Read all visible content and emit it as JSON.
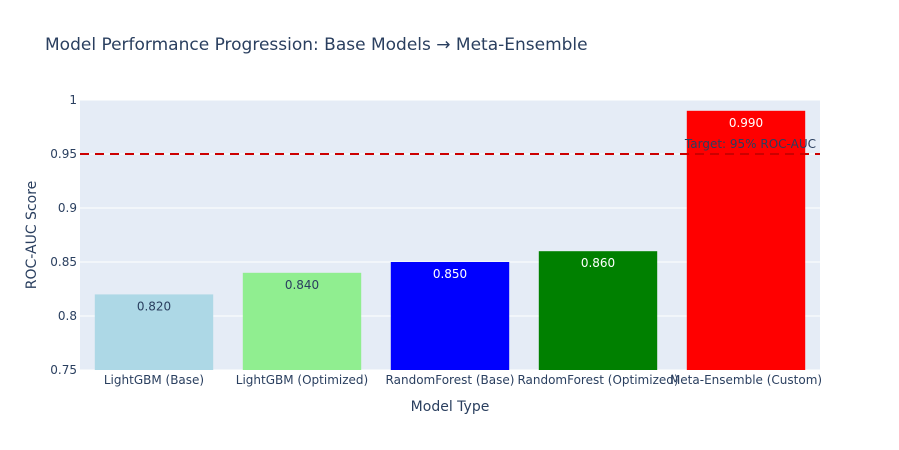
{
  "chart_data": {
    "type": "bar",
    "title": "Model Performance Progression: Base Models → Meta-Ensemble",
    "xlabel": "Model Type",
    "ylabel": "ROC-AUC Score",
    "ylim": [
      0.75,
      1.0
    ],
    "yticks": [
      0.75,
      0.8,
      0.85,
      0.9,
      0.95,
      1.0
    ],
    "ytick_labels": [
      "0.75",
      "0.8",
      "0.85",
      "0.9",
      "0.95",
      "1"
    ],
    "grid": true,
    "categories": [
      "LightGBM (Base)",
      "LightGBM (Optimized)",
      "RandomForest (Base)",
      "RandomForest (Optimized)",
      "Meta-Ensemble (Custom)"
    ],
    "values": [
      0.82,
      0.84,
      0.85,
      0.86,
      0.99
    ],
    "data_labels": [
      "0.820",
      "0.840",
      "0.850",
      "0.860",
      "0.990"
    ],
    "colors": [
      "#add8e6",
      "#90ee90",
      "#0000ff",
      "#008000",
      "#ff0000"
    ],
    "label_colors": [
      "#2a3f5f",
      "#2a3f5f",
      "#ffffff",
      "#ffffff",
      "#ffffff"
    ],
    "reference_line": {
      "value": 0.95,
      "label": "Target: 95% ROC-AUC",
      "color": "#cc0000"
    },
    "plot_background": "#e5ecf6",
    "gridline_color": "#ffffff",
    "text_color": "#2a3f5f"
  }
}
